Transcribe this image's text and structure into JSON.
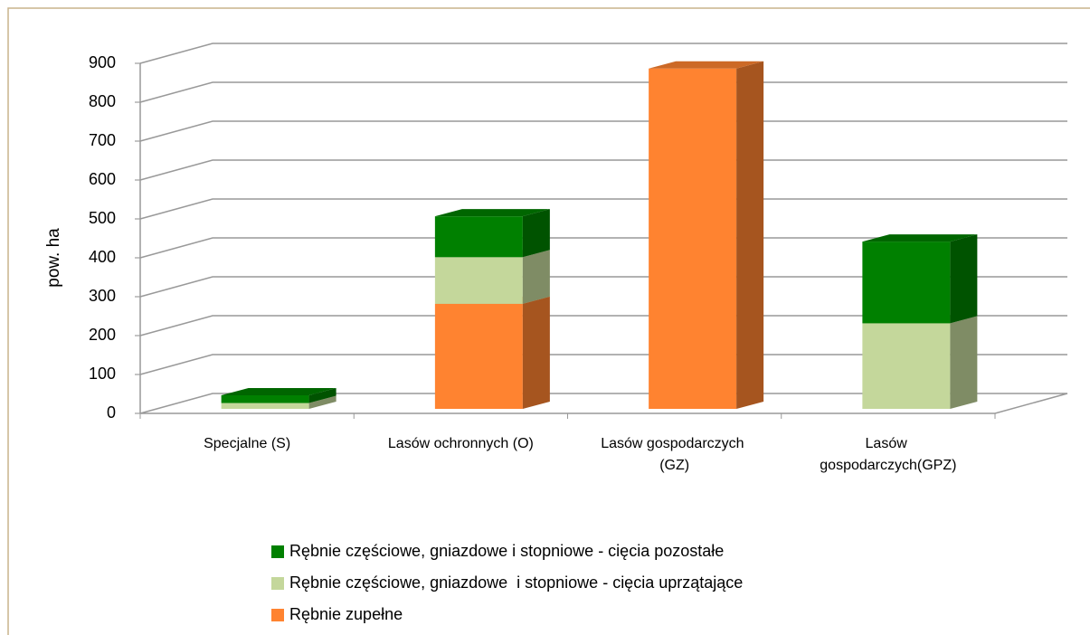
{
  "chart_data": {
    "type": "bar3d_stacked",
    "categories": [
      "Specjalne (S)",
      "Lasów ochronnych (O)",
      "Lasów gospodarczych (GZ)",
      "Lasów gospodarczych(GPZ)"
    ],
    "series": [
      {
        "name": "Rębnie zupełne",
        "color": "#ff8330",
        "values": [
          0,
          270,
          875,
          0
        ]
      },
      {
        "name": "Rębnie częściowe, gniazdowe  i stopniowe - cięcia uprzątające",
        "color": "#c4d79b",
        "values": [
          15,
          120,
          0,
          220
        ]
      },
      {
        "name": "Rębnie częściowe, gniazdowe i stopniowe - cięcia pozostałe",
        "color": "#008000",
        "values": [
          20,
          105,
          0,
          210
        ]
      }
    ],
    "y_label": "pow. ha",
    "ylim": [
      0,
      900
    ],
    "yticks": [
      0,
      100,
      200,
      300,
      400,
      500,
      600,
      700,
      800,
      900
    ],
    "grid": true
  }
}
